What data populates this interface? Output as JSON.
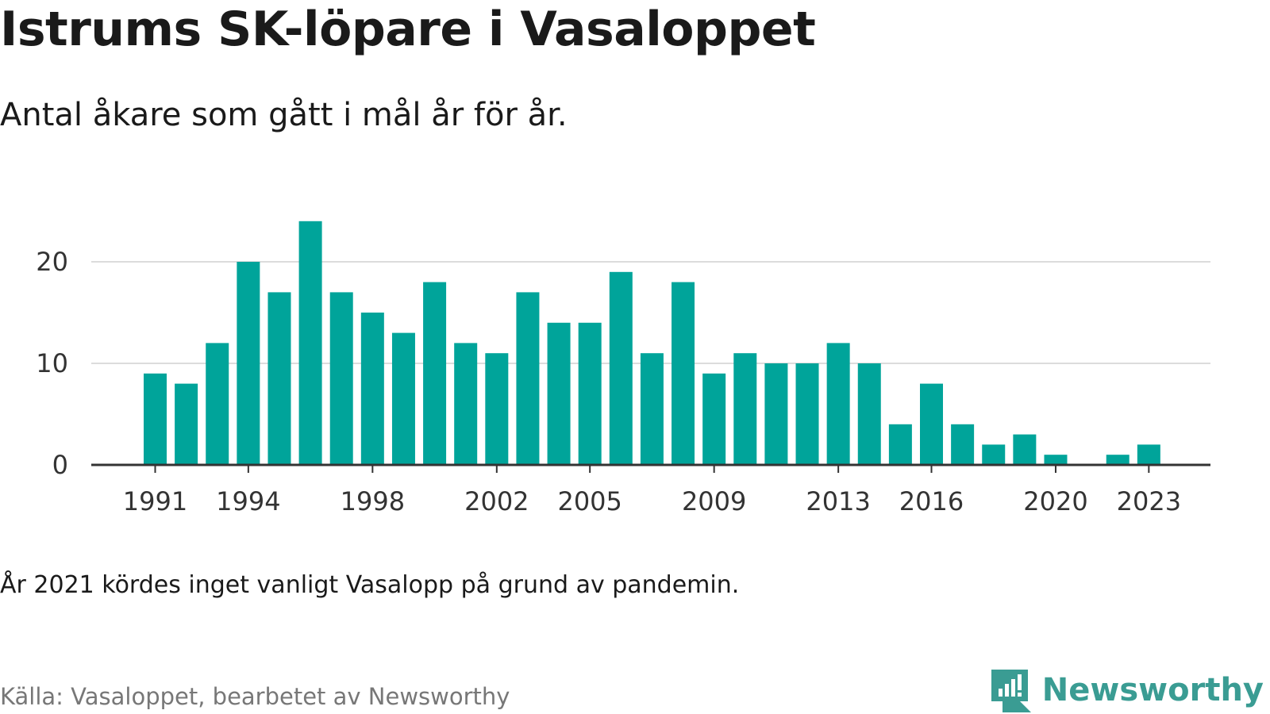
{
  "title": "Istrums SK-löpare i Vasaloppet",
  "subtitle": "Antal åkare som gått i mål år för år.",
  "note": "År 2021 kördes inget vanligt Vasalopp på grund av pandemin.",
  "source": "Källa: Vasaloppet, bearbetet av Newsworthy",
  "brand": "Newsworthy",
  "colors": {
    "bar": "#00a49a",
    "grid": "#dcdcdc",
    "axis": "#333333",
    "brand": "#3a9c93"
  },
  "chart_data": {
    "type": "bar",
    "x": [
      1991,
      1992,
      1993,
      1994,
      1995,
      1996,
      1997,
      1998,
      1999,
      2000,
      2001,
      2002,
      2003,
      2004,
      2005,
      2006,
      2007,
      2008,
      2009,
      2010,
      2011,
      2012,
      2013,
      2014,
      2015,
      2016,
      2017,
      2018,
      2019,
      2020,
      2021,
      2022,
      2023
    ],
    "values": [
      9,
      8,
      12,
      20,
      17,
      24,
      17,
      15,
      13,
      18,
      12,
      11,
      17,
      14,
      14,
      19,
      11,
      18,
      9,
      11,
      10,
      10,
      12,
      10,
      4,
      8,
      4,
      2,
      3,
      1,
      0,
      1,
      2
    ],
    "x_tick_labels": [
      "1991",
      "1994",
      "1998",
      "2002",
      "2005",
      "2009",
      "2013",
      "2016",
      "2020",
      "2023"
    ],
    "y_tick_labels": [
      "0",
      "10",
      "20"
    ],
    "ylim": [
      0,
      24
    ],
    "grid": true
  }
}
